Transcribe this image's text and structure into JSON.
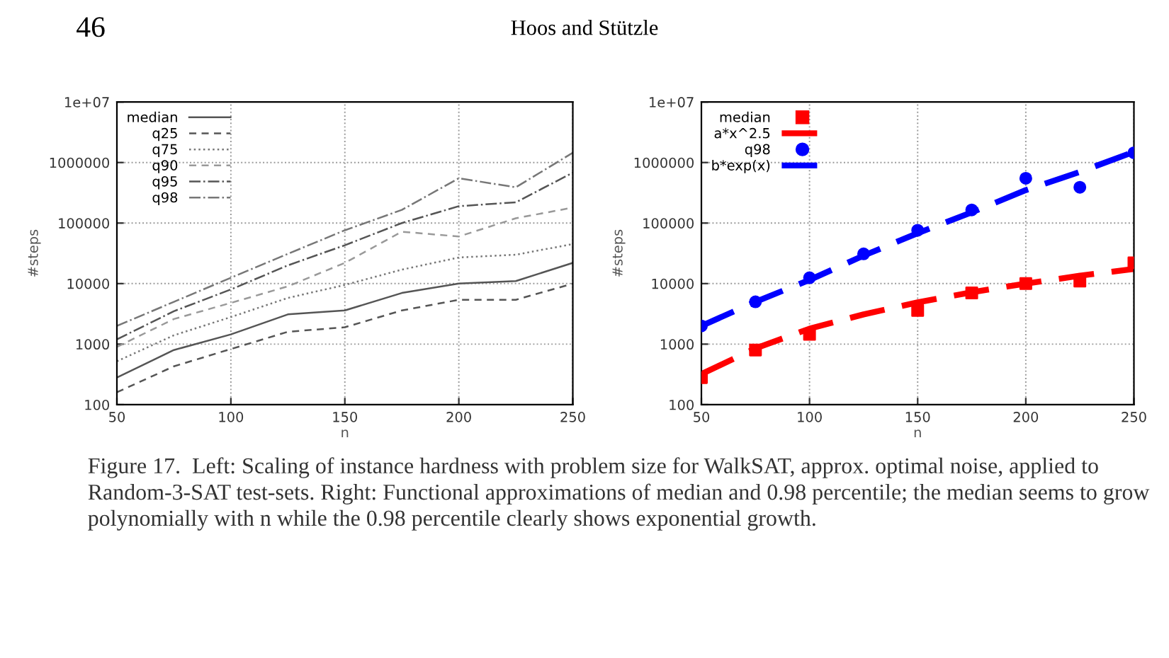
{
  "chart_data": [
    {
      "type": "line",
      "xlabel": "n",
      "ylabel": "#steps",
      "log": "y",
      "grid": true,
      "legend": "top left",
      "marker": "none",
      "annotations": [
        "46",
        "Hoos and Stützle",
        "Figure 17.  Left: Scaling of instance hardness with problem size for WalkSAT, approx. optimal noise, applied to Random-3-SAT test-sets. Right: Functional approximations of median and 0.98 percentile; the median seems to grow polynomially with n while the 0.98 percentile clearly shows exponential growth."
      ],
      "x": [
        50,
        75,
        100,
        125,
        150,
        175,
        200,
        225,
        250
      ],
      "xlim": [
        50,
        250
      ],
      "xticks": [
        50,
        100,
        150,
        200,
        250
      ],
      "ylim": [
        100,
        10000000
      ],
      "yticks": [
        100,
        1000,
        10000,
        100000,
        1000000,
        {
          "value": 10000000,
          "label": "1e+07"
        }
      ],
      "series": [
        {
          "name": "median",
          "color": "#555555",
          "line_style": "solid",
          "values": [
            280,
            800,
            1450,
            3100,
            3600,
            7000,
            10000,
            11000,
            22000
          ]
        },
        {
          "name": "q25",
          "color": "#555555",
          "line_style": "dashed",
          "values": [
            160,
            430,
            830,
            1600,
            1900,
            3600,
            5400,
            5400,
            10000
          ]
        },
        {
          "name": "q75",
          "color": "#777777",
          "line_style": "dotted",
          "values": [
            520,
            1400,
            2800,
            5800,
            9500,
            17000,
            27000,
            30000,
            45000
          ]
        },
        {
          "name": "q90",
          "color": "#999999",
          "line_style": "dashed",
          "values": [
            900,
            2600,
            4800,
            9000,
            22000,
            72000,
            60000,
            120000,
            180000
          ]
        },
        {
          "name": "q95",
          "color": "#555555",
          "line_style": "dashdot",
          "values": [
            1200,
            3500,
            8000,
            20000,
            43000,
            100000,
            190000,
            220000,
            680000
          ]
        },
        {
          "name": "q98",
          "color": "#777777",
          "line_style": "dashdot",
          "values": [
            2000,
            5000,
            12500,
            31000,
            76000,
            165000,
            550000,
            390000,
            1450000
          ]
        }
      ]
    },
    {
      "type": "scatter",
      "xlabel": "n",
      "ylabel": "#steps",
      "log": "y",
      "grid": true,
      "legend": "top left",
      "xlim": [
        50,
        250
      ],
      "xticks": [
        50,
        100,
        150,
        200,
        250
      ],
      "ylim": [
        100,
        10000000
      ],
      "yticks": [
        100,
        1000,
        10000,
        100000,
        1000000,
        {
          "value": 10000000,
          "label": "1e+07"
        }
      ],
      "series": [
        {
          "name": "median",
          "type": "scatter",
          "marker": "square",
          "color": "#ff0000",
          "x": [
            50,
            75,
            100,
            150,
            175,
            200,
            225,
            250
          ],
          "values": [
            280,
            800,
            1450,
            3600,
            7000,
            10000,
            11000,
            22000
          ]
        },
        {
          "name": "a*x^2.5",
          "type": "line",
          "line_style": "dashed",
          "color": "#ff0000",
          "x": [
            50,
            75,
            100,
            125,
            150,
            175,
            200,
            225,
            250
          ],
          "values": [
            320,
            850,
            1800,
            3100,
            4900,
            7200,
            10000,
            13500,
            17500
          ]
        },
        {
          "name": "q98",
          "type": "scatter",
          "marker": "circle",
          "color": "#0000ff",
          "x": [
            50,
            75,
            100,
            125,
            150,
            175,
            200,
            225,
            250
          ],
          "values": [
            2000,
            5000,
            12500,
            31000,
            76000,
            165000,
            550000,
            390000,
            1450000
          ]
        },
        {
          "name": "b*exp(x)",
          "type": "line",
          "line_style": "dashed",
          "color": "#0000ff",
          "x": [
            50,
            75,
            100,
            125,
            150,
            175,
            200,
            225,
            250
          ],
          "values": [
            2000,
            5000,
            11500,
            29000,
            68000,
            150000,
            350000,
            700000,
            1500000
          ]
        }
      ]
    }
  ]
}
